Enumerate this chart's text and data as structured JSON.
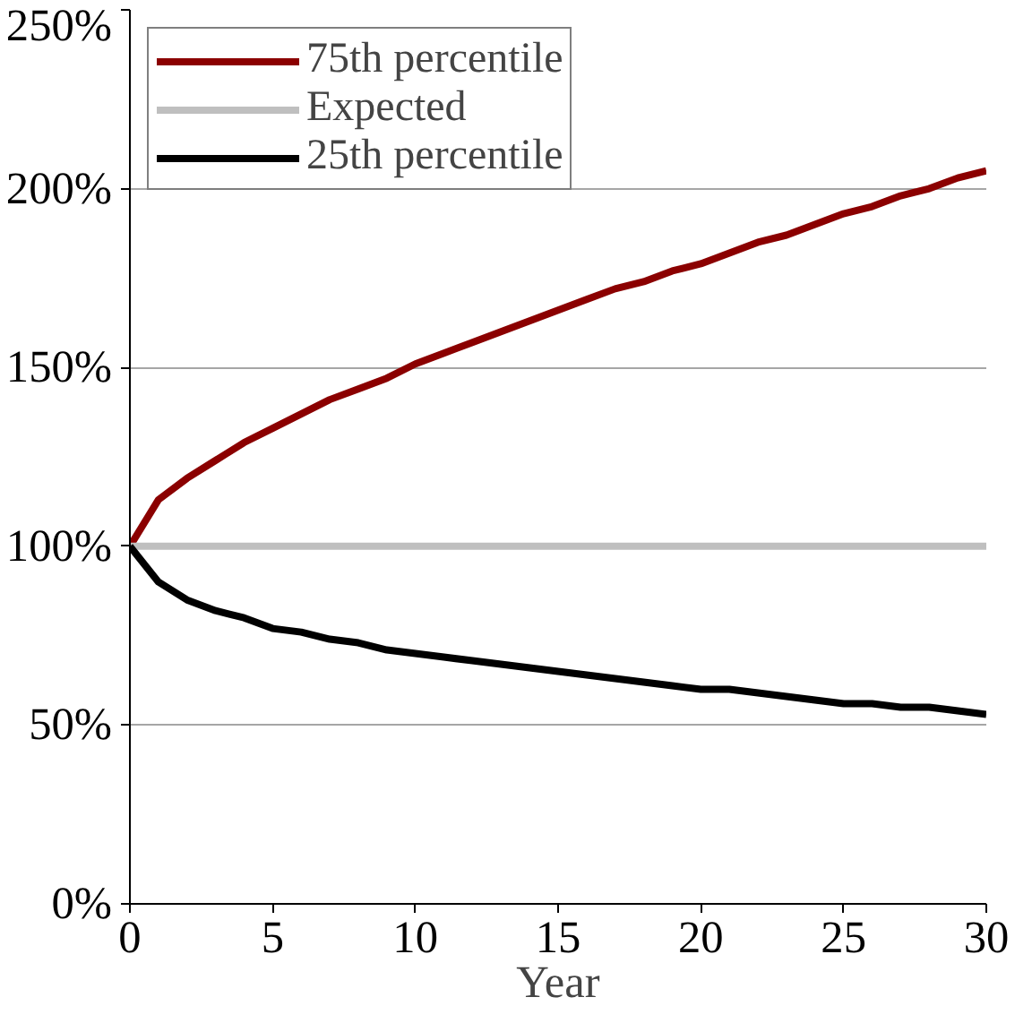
{
  "chart_data": {
    "type": "line",
    "xlabel": "Year",
    "x": [
      0,
      1,
      2,
      3,
      4,
      5,
      6,
      7,
      8,
      9,
      10,
      11,
      12,
      13,
      14,
      15,
      16,
      17,
      18,
      19,
      20,
      21,
      22,
      23,
      24,
      25,
      26,
      27,
      28,
      29,
      30
    ],
    "series": [
      {
        "name": "75th percentile",
        "color": "#8b0000",
        "values": [
          100,
          113,
          119,
          124,
          129,
          133,
          137,
          141,
          144,
          147,
          151,
          154,
          157,
          160,
          163,
          166,
          169,
          172,
          174,
          177,
          179,
          182,
          185,
          187,
          190,
          193,
          195,
          198,
          200,
          203,
          205
        ]
      },
      {
        "name": "Expected",
        "color": "#bfbfbf",
        "values": [
          100,
          100,
          100,
          100,
          100,
          100,
          100,
          100,
          100,
          100,
          100,
          100,
          100,
          100,
          100,
          100,
          100,
          100,
          100,
          100,
          100,
          100,
          100,
          100,
          100,
          100,
          100,
          100,
          100,
          100,
          100
        ]
      },
      {
        "name": "25th percentile",
        "color": "#000000",
        "values": [
          100,
          90,
          85,
          82,
          80,
          77,
          76,
          74,
          73,
          71,
          70,
          69,
          68,
          67,
          66,
          65,
          64,
          63,
          62,
          61,
          60,
          60,
          59,
          58,
          57,
          56,
          56,
          55,
          55,
          54,
          53
        ]
      }
    ],
    "xlim": [
      0,
      30
    ],
    "xticks": [
      0,
      5,
      10,
      15,
      20,
      25,
      30
    ],
    "ylim": [
      0,
      250
    ],
    "yticks": [
      {
        "value": 0,
        "label": "0%"
      },
      {
        "value": 50,
        "label": "50%"
      },
      {
        "value": 100,
        "label": "100%"
      },
      {
        "value": 150,
        "label": "150%"
      },
      {
        "value": 200,
        "label": "200%"
      },
      {
        "value": 250,
        "label": "250%"
      }
    ],
    "grid": "y",
    "legend": "top left",
    "marker": "none",
    "line_style": "solid"
  }
}
